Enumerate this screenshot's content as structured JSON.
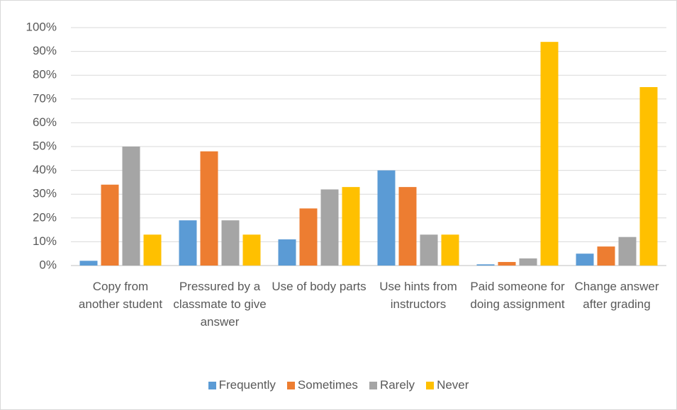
{
  "chart_data": {
    "type": "bar",
    "categories": [
      "Copy from another student",
      "Pressured by a classmate to give answer",
      "Use of body parts",
      "Use hints from instructors",
      "Paid someone for doing assignment",
      "Change answer after grading"
    ],
    "series": [
      {
        "name": "Frequently",
        "color": "#5b9bd5",
        "values": [
          2,
          19,
          11,
          40,
          0.5,
          5
        ]
      },
      {
        "name": "Sometimes",
        "color": "#ed7d31",
        "values": [
          34,
          48,
          24,
          33,
          1.5,
          8
        ]
      },
      {
        "name": "Rarely",
        "color": "#a5a5a5",
        "values": [
          50,
          19,
          32,
          13,
          3,
          12
        ]
      },
      {
        "name": "Never",
        "color": "#ffc000",
        "values": [
          13,
          13,
          33,
          13,
          94,
          75
        ]
      }
    ],
    "ylim": [
      0,
      100
    ],
    "yticks": [
      {
        "value": 0,
        "label": "0%"
      },
      {
        "value": 10,
        "label": "10%"
      },
      {
        "value": 20,
        "label": "20%"
      },
      {
        "value": 30,
        "label": "30%"
      },
      {
        "value": 40,
        "label": "40%"
      },
      {
        "value": 50,
        "label": "50%"
      },
      {
        "value": 60,
        "label": "60%"
      },
      {
        "value": 70,
        "label": "70%"
      },
      {
        "value": 80,
        "label": "80%"
      },
      {
        "value": 90,
        "label": "90%"
      },
      {
        "value": 100,
        "label": "100%"
      }
    ],
    "grid": true,
    "legend": "bottom"
  }
}
